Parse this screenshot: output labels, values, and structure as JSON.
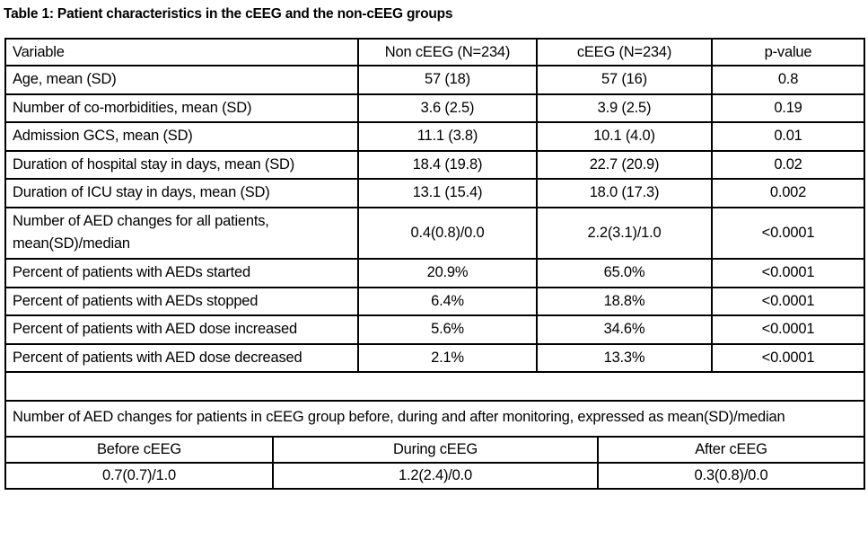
{
  "title": "Table 1: Patient characteristics in the cEEG and the non-cEEG groups",
  "colors": {
    "text": "#000000",
    "border": "#000000",
    "background": "#ffffff"
  },
  "main_table": {
    "headers": [
      "Variable",
      "Non cEEG (N=234)",
      "cEEG (N=234)",
      "p-value"
    ],
    "rows": [
      [
        "Age, mean (SD)",
        "57 (18)",
        "57 (16)",
        "0.8"
      ],
      [
        "Number of co-morbidities, mean (SD)",
        "3.6 (2.5)",
        "3.9 (2.5)",
        "0.19"
      ],
      [
        "Admission GCS, mean (SD)",
        "11.1 (3.8)",
        "10.1 (4.0)",
        "0.01"
      ],
      [
        "Duration of hospital stay in days, mean (SD)",
        "18.4 (19.8)",
        "22.7 (20.9)",
        "0.02"
      ],
      [
        "Duration of ICU stay in days, mean (SD)",
        "13.1 (15.4)",
        "18.0 (17.3)",
        "0.002"
      ],
      [
        "Number of AED changes for all patients, mean(SD)/median",
        "0.4(0.8)/0.0",
        "2.2(3.1)/1.0",
        "<0.0001"
      ],
      [
        "Percent of patients with AEDs started",
        "20.9%",
        "65.0%",
        "<0.0001"
      ],
      [
        "Percent of patients with AEDs stopped",
        "6.4%",
        "18.8%",
        "<0.0001"
      ],
      [
        "Percent of patients with AED dose increased",
        "5.6%",
        "34.6%",
        "<0.0001"
      ],
      [
        "Percent of patients with AED dose decreased",
        "2.1%",
        "13.3%",
        "<0.0001"
      ]
    ]
  },
  "note_row": "Number of AED changes for patients in cEEG group before, during and after monitoring, expressed as mean(SD)/median",
  "sub_table": {
    "headers": [
      "Before cEEG",
      "During cEEG",
      "After cEEG"
    ],
    "values": [
      "0.7(0.7)/1.0",
      "1.2(2.4)/0.0",
      "0.3(0.8)/0.0"
    ]
  }
}
